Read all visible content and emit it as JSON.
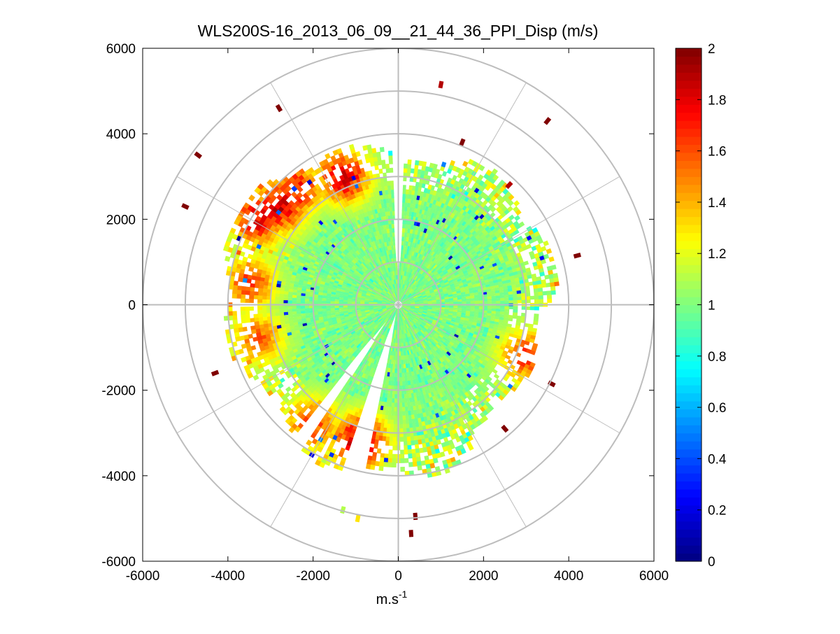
{
  "chart_data": {
    "type": "ppi_polar_scatter",
    "title": "WLS200S-16_2013_06_09__21_44_36_PPI_Disp (m/s)",
    "xlabel_base": "m.s",
    "xlabel_exp": "-1",
    "ylabel": "",
    "xlim": [
      -6000,
      6000
    ],
    "ylim": [
      -6000,
      6000
    ],
    "xticks": [
      -6000,
      -4000,
      -2000,
      0,
      2000,
      4000,
      6000
    ],
    "yticks": [
      6000,
      4000,
      2000,
      0,
      -2000,
      -4000,
      -6000
    ],
    "xtick_labels": [
      "-6000",
      "-4000",
      "-2000",
      "0",
      "2000",
      "4000",
      "6000"
    ],
    "ytick_labels": [
      "6000",
      "4000",
      "2000",
      "0",
      "-2000",
      "-4000",
      "-6000"
    ],
    "polar_grid": {
      "rings": [
        1000,
        2000,
        3000,
        4000,
        5000,
        6000
      ],
      "spoke_angles_deg": [
        0,
        30,
        60,
        90,
        120,
        150,
        180,
        210,
        240,
        270,
        300,
        330
      ]
    },
    "data_region": {
      "max_range_west": 4100,
      "max_range_east": 3500,
      "gaps_deg": [
        [
          88,
          92
        ],
        [
          232,
          236
        ],
        [
          252,
          258
        ]
      ],
      "high_value_clusters": [
        {
          "x": -2800,
          "y": 2300,
          "value": 1.9
        },
        {
          "x": -3300,
          "y": 2000,
          "value": 1.85
        },
        {
          "x": -2400,
          "y": 2700,
          "value": 1.8
        },
        {
          "x": -3500,
          "y": 500,
          "value": 1.7
        },
        {
          "x": -3300,
          "y": -800,
          "value": 1.6
        },
        {
          "x": -2000,
          "y": -2800,
          "value": 1.7
        },
        {
          "x": -900,
          "y": -3200,
          "value": 2.0
        },
        {
          "x": 3000,
          "y": -1200,
          "value": 1.7
        },
        {
          "x": -1300,
          "y": 3000,
          "value": 1.9
        }
      ],
      "isolated_points": [
        {
          "x": 1000,
          "y": 5150,
          "value": 1.9
        },
        {
          "x": -2800,
          "y": 4600,
          "value": 2.0
        },
        {
          "x": 3500,
          "y": 4300,
          "value": 2.0
        },
        {
          "x": -4700,
          "y": 3500,
          "value": 2.0
        },
        {
          "x": 1500,
          "y": 3800,
          "value": 2.0
        },
        {
          "x": -5000,
          "y": 2300,
          "value": 2.0
        },
        {
          "x": 2600,
          "y": 2800,
          "value": 1.9
        },
        {
          "x": 4200,
          "y": 1150,
          "value": 2.0
        },
        {
          "x": -4300,
          "y": -1600,
          "value": 2.0
        },
        {
          "x": 3600,
          "y": -1850,
          "value": 2.0
        },
        {
          "x": -1300,
          "y": -4800,
          "value": 1.1
        },
        {
          "x": -950,
          "y": -5000,
          "value": 1.3
        },
        {
          "x": 400,
          "y": -4950,
          "value": 2.0
        },
        {
          "x": 300,
          "y": -5350,
          "value": 2.0
        },
        {
          "x": 2500,
          "y": -2900,
          "value": 2.0
        }
      ]
    },
    "colorbar": {
      "colormap": "jet",
      "range": [
        0,
        2
      ],
      "ticks": [
        0,
        0.2,
        0.4,
        0.6,
        0.8,
        1,
        1.2,
        1.4,
        1.6,
        1.8,
        2
      ],
      "tick_labels": [
        "0",
        "0.2",
        "0.4",
        "0.6",
        "0.8",
        "1",
        "1.2",
        "1.4",
        "1.6",
        "1.8",
        "2"
      ]
    }
  }
}
